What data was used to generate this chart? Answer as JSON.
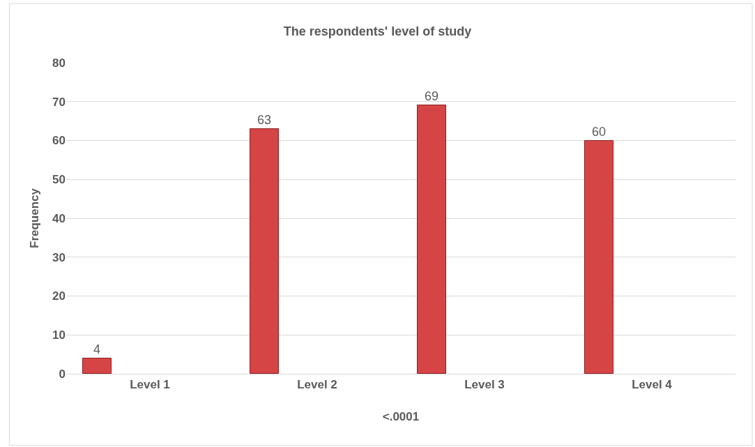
{
  "chart_data": {
    "type": "bar",
    "title": "The respondents' level of study",
    "xlabel": "<.0001",
    "ylabel": "Frequency",
    "categories": [
      "Level 1",
      "Level 2",
      "Level 3",
      "Level 4"
    ],
    "values": [
      4,
      63,
      69,
      60
    ],
    "color": "#d64545",
    "ylim": [
      0,
      80
    ],
    "yticks": [
      0,
      10,
      20,
      30,
      40,
      50,
      60,
      70,
      80
    ],
    "grid": "y",
    "data_labels": true,
    "legend": false
  }
}
